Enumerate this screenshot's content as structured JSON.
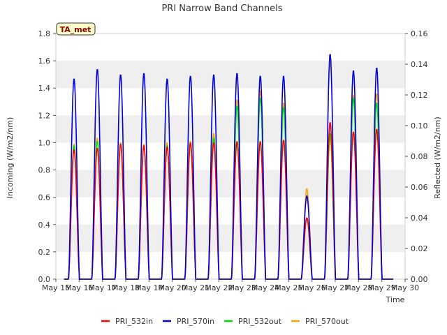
{
  "chart_data": {
    "type": "line",
    "title": "PRI Narrow Band Channels",
    "xlabel": "Time",
    "ylabel_left": "Incoming (W/m2/nm)",
    "ylabel_right": "Reflected (W/m2/nm)",
    "site_badge": "TA_met",
    "x_tick_labels": [
      "May 15",
      "May 16",
      "May 17",
      "May 18",
      "May 19",
      "May 20",
      "May 21",
      "May 22",
      "May 23",
      "May 24",
      "May 25",
      "May 26",
      "May 27",
      "May 28",
      "May 29",
      "May 30"
    ],
    "xlim": [
      15,
      30
    ],
    "ylim_left": [
      0.0,
      1.8
    ],
    "ylim_right": [
      0.0,
      0.16
    ],
    "y_ticks_left": [
      "0.0",
      "0.2",
      "0.4",
      "0.6",
      "0.8",
      "1.0",
      "1.2",
      "1.4",
      "1.6",
      "1.8"
    ],
    "y_ticks_right": [
      "0.00",
      "0.02",
      "0.04",
      "0.06",
      "0.08",
      "0.10",
      "0.12",
      "0.14",
      "0.16"
    ],
    "grid_bands": true,
    "legend_position": "bottom",
    "series": [
      {
        "name": "PRI_532in",
        "color": "#ff0000",
        "axis": "left",
        "daily_peaks": [
          0.95,
          0.96,
          0.99,
          0.98,
          0.97,
          1.0,
          1.0,
          1.01,
          1.01,
          1.02,
          0.45,
          1.15,
          1.08,
          1.1
        ]
      },
      {
        "name": "PRI_570in",
        "color": "#0000dd",
        "axis": "left",
        "daily_peaks": [
          1.47,
          1.54,
          1.5,
          1.51,
          1.47,
          1.49,
          1.5,
          1.51,
          1.49,
          1.49,
          0.61,
          1.65,
          1.53,
          1.55
        ]
      },
      {
        "name": "PRI_532out",
        "color": "#00dd00",
        "axis": "right",
        "daily_peaks": [
          0.087,
          0.09,
          0.088,
          0.087,
          0.087,
          0.088,
          0.092,
          0.113,
          0.118,
          0.112,
          0.04,
          0.095,
          0.118,
          0.115
        ]
      },
      {
        "name": "PRI_570out",
        "color": "#ffa500",
        "axis": "right",
        "daily_peaks": [
          0.088,
          0.092,
          0.089,
          0.088,
          0.089,
          0.09,
          0.095,
          0.117,
          0.123,
          0.115,
          0.059,
          0.092,
          0.12,
          0.121
        ]
      }
    ]
  }
}
